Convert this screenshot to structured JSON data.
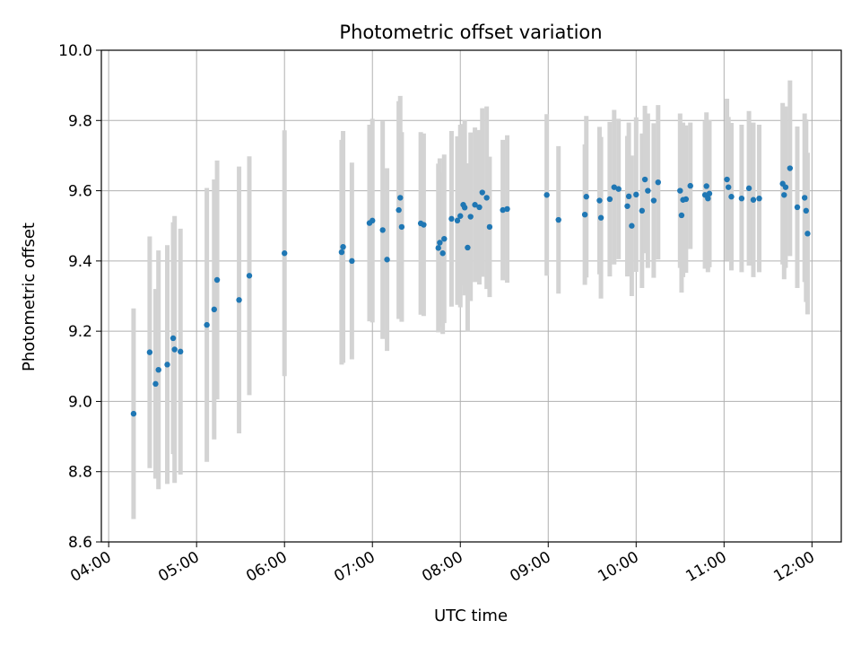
{
  "chart_data": {
    "type": "scatter",
    "title": "Photometric offset variation",
    "xlabel": "UTC time",
    "ylabel": "Photometric offset",
    "xlim": [
      "03:55",
      "12:20"
    ],
    "ylim": [
      8.6,
      10.0
    ],
    "x_ticks": [
      "04:00",
      "05:00",
      "06:00",
      "07:00",
      "08:00",
      "09:00",
      "10:00",
      "11:00",
      "12:00"
    ],
    "y_ticks": [
      "8.6",
      "8.8",
      "9.0",
      "9.2",
      "9.4",
      "9.6",
      "9.8",
      "10.0"
    ],
    "grid": true,
    "colors": {
      "points": "#1f77b4",
      "error_bars": "#d3d3d3",
      "grid": "#b0b0b0"
    },
    "series": [
      {
        "x": [
          "04:17",
          "04:28",
          "04:32",
          "04:34",
          "04:40",
          "04:44",
          "04:45",
          "04:49",
          "05:07",
          "05:12",
          "05:14",
          "05:29",
          "05:36",
          "06:00",
          "06:39",
          "06:40",
          "06:46",
          "06:58",
          "07:00",
          "07:07",
          "07:10",
          "07:18",
          "07:19",
          "07:20",
          "07:33",
          "07:35",
          "07:45",
          "07:46",
          "07:48",
          "07:49",
          "07:54",
          "07:58",
          "08:00",
          "08:02",
          "08:03",
          "08:05",
          "08:07",
          "08:10",
          "08:13",
          "08:15",
          "08:18",
          "08:20",
          "08:29",
          "08:32",
          "08:59",
          "09:07",
          "09:25",
          "09:26",
          "09:35",
          "09:36",
          "09:42",
          "09:45",
          "09:48",
          "09:54",
          "09:55",
          "09:57",
          "10:00",
          "10:04",
          "10:06",
          "10:08",
          "10:12",
          "10:15",
          "10:30",
          "10:31",
          "10:32",
          "10:34",
          "10:37",
          "10:47",
          "10:48",
          "10:49",
          "10:50",
          "11:02",
          "11:03",
          "11:05",
          "11:12",
          "11:17",
          "11:20",
          "11:24",
          "11:40",
          "11:41",
          "11:42",
          "11:45",
          "11:50",
          "11:55",
          "11:56",
          "11:57"
        ],
        "y": [
          8.965,
          9.14,
          9.05,
          9.09,
          9.105,
          9.18,
          9.148,
          9.142,
          9.218,
          9.262,
          9.346,
          9.289,
          9.358,
          9.422,
          9.425,
          9.44,
          9.4,
          9.508,
          9.515,
          9.488,
          9.404,
          9.545,
          9.58,
          9.497,
          9.507,
          9.503,
          9.437,
          9.452,
          9.422,
          9.463,
          9.52,
          9.515,
          9.528,
          9.56,
          9.552,
          9.438,
          9.526,
          9.56,
          9.553,
          9.595,
          9.58,
          9.497,
          9.545,
          9.548,
          9.588,
          9.517,
          9.532,
          9.583,
          9.572,
          9.523,
          9.576,
          9.61,
          9.605,
          9.556,
          9.584,
          9.5,
          9.589,
          9.543,
          9.632,
          9.6,
          9.572,
          9.624,
          9.6,
          9.53,
          9.574,
          9.576,
          9.614,
          9.588,
          9.613,
          9.578,
          9.592,
          9.632,
          9.61,
          9.583,
          9.578,
          9.607,
          9.574,
          9.578,
          9.62,
          9.588,
          9.61,
          9.664,
          9.553,
          9.58,
          9.543,
          9.478
        ],
        "err": [
          0.3,
          0.33,
          0.27,
          0.34,
          0.34,
          0.33,
          0.38,
          0.35,
          0.39,
          0.37,
          0.34,
          0.38,
          0.34,
          0.35,
          0.32,
          0.33,
          0.28,
          0.28,
          0.29,
          0.31,
          0.26,
          0.31,
          0.29,
          0.27,
          0.26,
          0.26,
          0.24,
          0.24,
          0.23,
          0.24,
          0.25,
          0.24,
          0.26,
          0.23,
          0.25,
          0.24,
          0.24,
          0.22,
          0.22,
          0.24,
          0.26,
          0.2,
          0.2,
          0.21,
          0.23,
          0.21,
          0.2,
          0.23,
          0.21,
          0.23,
          0.22,
          0.22,
          0.2,
          0.2,
          0.21,
          0.2,
          0.22,
          0.22,
          0.21,
          0.22,
          0.22,
          0.22,
          0.22,
          0.22,
          0.22,
          0.21,
          0.18,
          0.21,
          0.21,
          0.21,
          0.21,
          0.23,
          0.2,
          0.21,
          0.21,
          0.22,
          0.22,
          0.21,
          0.23,
          0.24,
          0.23,
          0.25,
          0.23,
          0.24,
          0.26,
          0.23
        ]
      }
    ]
  }
}
